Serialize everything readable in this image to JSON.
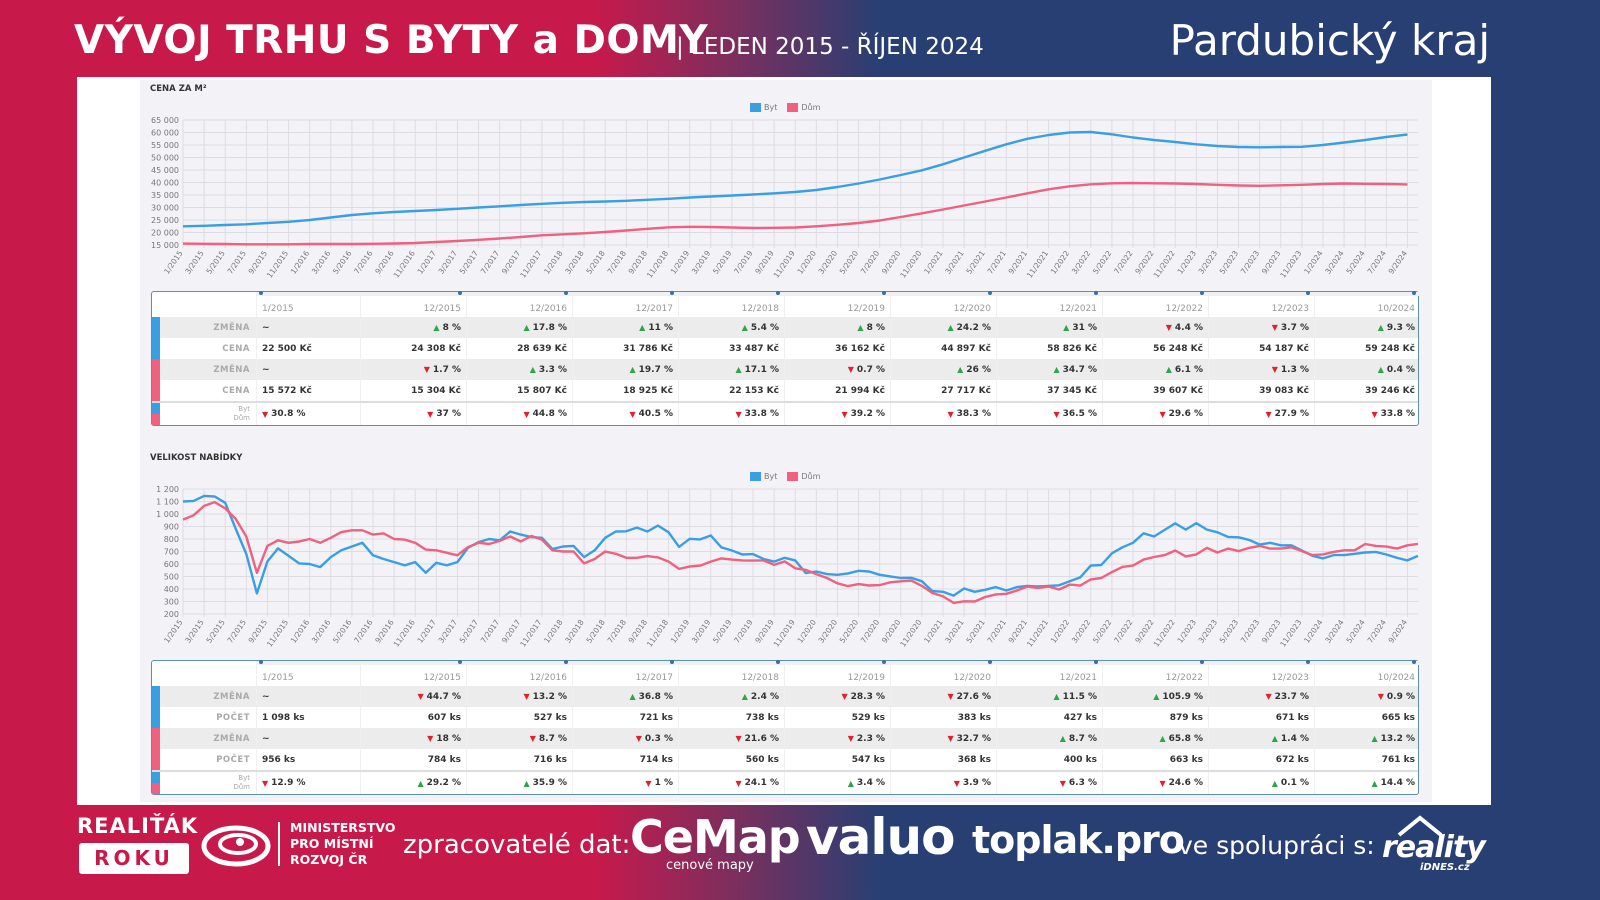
{
  "header": {
    "title": "VÝVOJ TRHU S BYTY a DOMY",
    "subtitle": "| LEDEN 2015 - ŘÍJEN 2024",
    "region": "Pardubický kraj"
  },
  "colors": {
    "byt": "#3a9fe2",
    "dum": "#f0607f",
    "up": "#2fa44a",
    "down": "#e0202e"
  },
  "legend": {
    "byt": "Byt",
    "dum": "Dům"
  },
  "chart_data": [
    {
      "type": "line",
      "title": "CENA ZA M²",
      "ylim": [
        15000,
        65000
      ],
      "yticks": [
        "15 000",
        "20 000",
        "25 000",
        "30 000",
        "35 000",
        "40 000",
        "45 000",
        "50 000",
        "55 000",
        "60 000",
        "65 000"
      ],
      "x_step_months": 2,
      "series": [
        {
          "name": "Byt",
          "values": [
            22500,
            22700,
            23000,
            23300,
            23800,
            24300,
            25000,
            26000,
            27000,
            27700,
            28200,
            28600,
            29000,
            29500,
            30000,
            30500,
            31000,
            31500,
            31900,
            32200,
            32400,
            32700,
            33100,
            33500,
            34000,
            34400,
            34800,
            35200,
            35700,
            36200,
            37000,
            38200,
            39600,
            41200,
            43000,
            44900,
            47300,
            50000,
            52700,
            55300,
            57500,
            59000,
            60000,
            60200,
            59300,
            58000,
            57000,
            56200,
            55300,
            54600,
            54200,
            54100,
            54200,
            54300,
            55000,
            56000,
            57000,
            58200,
            59200
          ]
        },
        {
          "name": "Dům",
          "values": [
            15572,
            15500,
            15400,
            15300,
            15300,
            15300,
            15400,
            15400,
            15400,
            15500,
            15600,
            15800,
            16200,
            16600,
            17100,
            17600,
            18200,
            18900,
            19300,
            19700,
            20200,
            20800,
            21500,
            22100,
            22300,
            22200,
            22000,
            21800,
            21900,
            22000,
            22500,
            23100,
            23800,
            24800,
            26200,
            27700,
            29200,
            30800,
            32400,
            34000,
            35700,
            37300,
            38500,
            39300,
            39700,
            39800,
            39700,
            39600,
            39400,
            39100,
            38800,
            38700,
            38900,
            39100,
            39400,
            39600,
            39500,
            39400,
            39250
          ]
        }
      ]
    },
    {
      "type": "line",
      "title": "VELIKOST NABÍDKY",
      "ylim": [
        200,
        1200
      ],
      "yticks": [
        "200",
        "300",
        "400",
        "500",
        "600",
        "700",
        "800",
        "900",
        "1 000",
        "1 100",
        "1 200"
      ],
      "x_step_months": 1,
      "series": [
        {
          "name": "Byt",
          "values": [
            1100,
            1105,
            1145,
            1140,
            1090,
            880,
            680,
            365,
            620,
            725,
            665,
            605,
            600,
            575,
            655,
            710,
            740,
            770,
            670,
            640,
            615,
            590,
            615,
            530,
            610,
            590,
            615,
            730,
            775,
            800,
            790,
            860,
            835,
            815,
            810,
            720,
            740,
            745,
            655,
            710,
            810,
            860,
            862,
            891,
            860,
            907,
            854,
            737,
            802,
            797,
            828,
            734,
            708,
            676,
            679,
            640,
            619,
            650,
            629,
            527,
            540,
            519,
            514,
            525,
            546,
            540,
            514,
            501,
            488,
            490,
            462,
            383,
            378,
            347,
            404,
            378,
            394,
            415,
            388,
            415,
            425,
            420,
            425,
            430,
            462,
            493,
            587,
            592,
            686,
            734,
            770,
            846,
            820,
            873,
            925,
            875,
            927,
            875,
            854,
            817,
            814,
            793,
            755,
            770,
            750,
            750,
            708,
            666,
            645,
            671,
            671,
            682,
            692,
            697,
            676,
            650,
            629,
            665
          ]
        },
        {
          "name": "Dům",
          "values": [
            955,
            990,
            1065,
            1095,
            1045,
            960,
            820,
            530,
            745,
            790,
            770,
            780,
            800,
            770,
            810,
            855,
            870,
            870,
            835,
            845,
            800,
            795,
            770,
            715,
            710,
            690,
            670,
            735,
            770,
            760,
            785,
            820,
            780,
            825,
            795,
            710,
            700,
            700,
            605,
            640,
            700,
            682,
            650,
            650,
            663,
            653,
            619,
            561,
            580,
            587,
            619,
            645,
            635,
            629,
            627,
            629,
            593,
            621,
            566,
            553,
            519,
            488,
            446,
            423,
            439,
            428,
            431,
            454,
            462,
            467,
            425,
            368,
            341,
            289,
            302,
            300,
            336,
            357,
            362,
            388,
            420,
            409,
            420,
            396,
            435,
            427,
            477,
            488,
            535,
            577,
            587,
            635,
            656,
            671,
            708,
            661,
            677,
            729,
            692,
            723,
            703,
            729,
            745,
            723,
            723,
            734,
            703,
            671,
            677,
            697,
            710,
            710,
            760,
            745,
            739,
            723,
            750,
            761
          ]
        }
      ]
    }
  ],
  "xticks": [
    "1/2015",
    "3/2015",
    "5/2015",
    "7/2015",
    "9/2015",
    "11/2015",
    "1/2016",
    "3/2016",
    "5/2016",
    "7/2016",
    "9/2016",
    "11/2016",
    "1/2017",
    "3/2017",
    "5/2017",
    "7/2017",
    "9/2017",
    "11/2017",
    "1/2018",
    "3/2018",
    "5/2018",
    "7/2018",
    "9/2018",
    "11/2018",
    "1/2019",
    "3/2019",
    "5/2019",
    "7/2019",
    "9/2019",
    "11/2019",
    "1/2020",
    "3/2020",
    "5/2020",
    "7/2020",
    "9/2020",
    "11/2020",
    "1/2021",
    "3/2021",
    "5/2021",
    "7/2021",
    "9/2021",
    "11/2021",
    "1/2022",
    "3/2022",
    "5/2022",
    "7/2022",
    "9/2022",
    "11/2022",
    "1/2023",
    "3/2023",
    "5/2023",
    "7/2023",
    "9/2023",
    "11/2023",
    "1/2024",
    "3/2024",
    "5/2024",
    "7/2024",
    "9/2024"
  ],
  "tables": {
    "price": {
      "columns": [
        "1/2015",
        "12/2015",
        "12/2016",
        "12/2017",
        "12/2018",
        "12/2019",
        "12/2020",
        "12/2021",
        "12/2022",
        "12/2023",
        "10/2024"
      ],
      "rows": [
        {
          "group": "byt",
          "label": "ZMĚNA",
          "cells": [
            {
              "d": "",
              "t": "~"
            },
            {
              "d": "up",
              "t": "8 %"
            },
            {
              "d": "up",
              "t": "17.8 %"
            },
            {
              "d": "up",
              "t": "11 %"
            },
            {
              "d": "up",
              "t": "5.4 %"
            },
            {
              "d": "up",
              "t": "8 %"
            },
            {
              "d": "up",
              "t": "24.2 %"
            },
            {
              "d": "up",
              "t": "31 %"
            },
            {
              "d": "down",
              "t": "4.4 %"
            },
            {
              "d": "down",
              "t": "3.7 %"
            },
            {
              "d": "up",
              "t": "9.3 %"
            }
          ]
        },
        {
          "group": "byt",
          "label": "CENA",
          "cells": [
            {
              "d": "",
              "t": "22 500 Kč"
            },
            {
              "d": "",
              "t": "24 308 Kč"
            },
            {
              "d": "",
              "t": "28 639 Kč"
            },
            {
              "d": "",
              "t": "31 786 Kč"
            },
            {
              "d": "",
              "t": "33 487 Kč"
            },
            {
              "d": "",
              "t": "36 162 Kč"
            },
            {
              "d": "",
              "t": "44 897 Kč"
            },
            {
              "d": "",
              "t": "58 826 Kč"
            },
            {
              "d": "",
              "t": "56 248 Kč"
            },
            {
              "d": "",
              "t": "54 187 Kč"
            },
            {
              "d": "",
              "t": "59 248 Kč"
            }
          ]
        },
        {
          "group": "dum",
          "label": "ZMĚNA",
          "cells": [
            {
              "d": "",
              "t": "~"
            },
            {
              "d": "down",
              "t": "1.7 %"
            },
            {
              "d": "up",
              "t": "3.3 %"
            },
            {
              "d": "up",
              "t": "19.7 %"
            },
            {
              "d": "up",
              "t": "17.1 %"
            },
            {
              "d": "down",
              "t": "0.7 %"
            },
            {
              "d": "up",
              "t": "26 %"
            },
            {
              "d": "up",
              "t": "34.7 %"
            },
            {
              "d": "up",
              "t": "6.1 %"
            },
            {
              "d": "down",
              "t": "1.3 %"
            },
            {
              "d": "up",
              "t": "0.4 %"
            }
          ]
        },
        {
          "group": "dum",
          "label": "CENA",
          "cells": [
            {
              "d": "",
              "t": "15 572 Kč"
            },
            {
              "d": "",
              "t": "15 304 Kč"
            },
            {
              "d": "",
              "t": "15 807 Kč"
            },
            {
              "d": "",
              "t": "18 925 Kč"
            },
            {
              "d": "",
              "t": "22 153 Kč"
            },
            {
              "d": "",
              "t": "21 994 Kč"
            },
            {
              "d": "",
              "t": "27 717 Kč"
            },
            {
              "d": "",
              "t": "37 345 Kč"
            },
            {
              "d": "",
              "t": "39 607 Kč"
            },
            {
              "d": "",
              "t": "39 083 Kč"
            },
            {
              "d": "",
              "t": "39 246 Kč"
            }
          ]
        },
        {
          "group": "ratio",
          "label": "Byt",
          "label2": "Dům",
          "cells": [
            {
              "d": "down",
              "t": "30.8 %"
            },
            {
              "d": "down",
              "t": "37 %"
            },
            {
              "d": "down",
              "t": "44.8 %"
            },
            {
              "d": "down",
              "t": "40.5 %"
            },
            {
              "d": "down",
              "t": "33.8 %"
            },
            {
              "d": "down",
              "t": "39.2 %"
            },
            {
              "d": "down",
              "t": "38.3 %"
            },
            {
              "d": "down",
              "t": "36.5 %"
            },
            {
              "d": "down",
              "t": "29.6 %"
            },
            {
              "d": "down",
              "t": "27.9 %"
            },
            {
              "d": "down",
              "t": "33.8 %"
            }
          ]
        }
      ]
    },
    "offer": {
      "columns": [
        "1/2015",
        "12/2015",
        "12/2016",
        "12/2017",
        "12/2018",
        "12/2019",
        "12/2020",
        "12/2021",
        "12/2022",
        "12/2023",
        "10/2024"
      ],
      "rows": [
        {
          "group": "byt",
          "label": "ZMĚNA",
          "cells": [
            {
              "d": "",
              "t": "~"
            },
            {
              "d": "down",
              "t": "44.7 %"
            },
            {
              "d": "down",
              "t": "13.2 %"
            },
            {
              "d": "up",
              "t": "36.8 %"
            },
            {
              "d": "up",
              "t": "2.4 %"
            },
            {
              "d": "down",
              "t": "28.3 %"
            },
            {
              "d": "down",
              "t": "27.6 %"
            },
            {
              "d": "up",
              "t": "11.5 %"
            },
            {
              "d": "up",
              "t": "105.9 %"
            },
            {
              "d": "down",
              "t": "23.7 %"
            },
            {
              "d": "down",
              "t": "0.9 %"
            }
          ]
        },
        {
          "group": "byt",
          "label": "POČET",
          "cells": [
            {
              "d": "",
              "t": "1 098 ks"
            },
            {
              "d": "",
              "t": "607 ks"
            },
            {
              "d": "",
              "t": "527 ks"
            },
            {
              "d": "",
              "t": "721 ks"
            },
            {
              "d": "",
              "t": "738 ks"
            },
            {
              "d": "",
              "t": "529 ks"
            },
            {
              "d": "",
              "t": "383 ks"
            },
            {
              "d": "",
              "t": "427 ks"
            },
            {
              "d": "",
              "t": "879 ks"
            },
            {
              "d": "",
              "t": "671 ks"
            },
            {
              "d": "",
              "t": "665 ks"
            }
          ]
        },
        {
          "group": "dum",
          "label": "ZMĚNA",
          "cells": [
            {
              "d": "",
              "t": "~"
            },
            {
              "d": "down",
              "t": "18 %"
            },
            {
              "d": "down",
              "t": "8.7 %"
            },
            {
              "d": "down",
              "t": "0.3 %"
            },
            {
              "d": "down",
              "t": "21.6 %"
            },
            {
              "d": "down",
              "t": "2.3 %"
            },
            {
              "d": "down",
              "t": "32.7 %"
            },
            {
              "d": "up",
              "t": "8.7 %"
            },
            {
              "d": "up",
              "t": "65.8 %"
            },
            {
              "d": "up",
              "t": "1.4 %"
            },
            {
              "d": "up",
              "t": "13.2 %"
            }
          ]
        },
        {
          "group": "dum",
          "label": "POČET",
          "cells": [
            {
              "d": "",
              "t": "956 ks"
            },
            {
              "d": "",
              "t": "784 ks"
            },
            {
              "d": "",
              "t": "716 ks"
            },
            {
              "d": "",
              "t": "714 ks"
            },
            {
              "d": "",
              "t": "560 ks"
            },
            {
              "d": "",
              "t": "547 ks"
            },
            {
              "d": "",
              "t": "368 ks"
            },
            {
              "d": "",
              "t": "400 ks"
            },
            {
              "d": "",
              "t": "663 ks"
            },
            {
              "d": "",
              "t": "672 ks"
            },
            {
              "d": "",
              "t": "761 ks"
            }
          ]
        },
        {
          "group": "ratio",
          "label": "Byt",
          "label2": "Dům",
          "cells": [
            {
              "d": "down",
              "t": "12.9 %"
            },
            {
              "d": "up",
              "t": "29.2 %"
            },
            {
              "d": "up",
              "t": "35.9 %"
            },
            {
              "d": "down",
              "t": "1 %"
            },
            {
              "d": "down",
              "t": "24.1 %"
            },
            {
              "d": "up",
              "t": "3.4 %"
            },
            {
              "d": "down",
              "t": "3.9 %"
            },
            {
              "d": "down",
              "t": "6.3 %"
            },
            {
              "d": "down",
              "t": "24.6 %"
            },
            {
              "d": "up",
              "t": "0.1 %"
            },
            {
              "d": "up",
              "t": "14.4 %"
            }
          ]
        }
      ]
    }
  },
  "footer": {
    "award_line1": "REALIŤÁK",
    "award_line2": "ROKU",
    "ministry": [
      "MINISTERSTVO",
      "PRO MÍSTNÍ",
      "ROZVOJ ČR"
    ],
    "processors_label": "zpracovatelé dat:",
    "cemap": "CeMap",
    "cemap_sub": "cenové mapy",
    "valuo": "valuo",
    "toplak": "toplak.pro",
    "coop_label": "ve spolupráci s:",
    "reality": "reality",
    "reality_sub": "iDNES.cz"
  }
}
